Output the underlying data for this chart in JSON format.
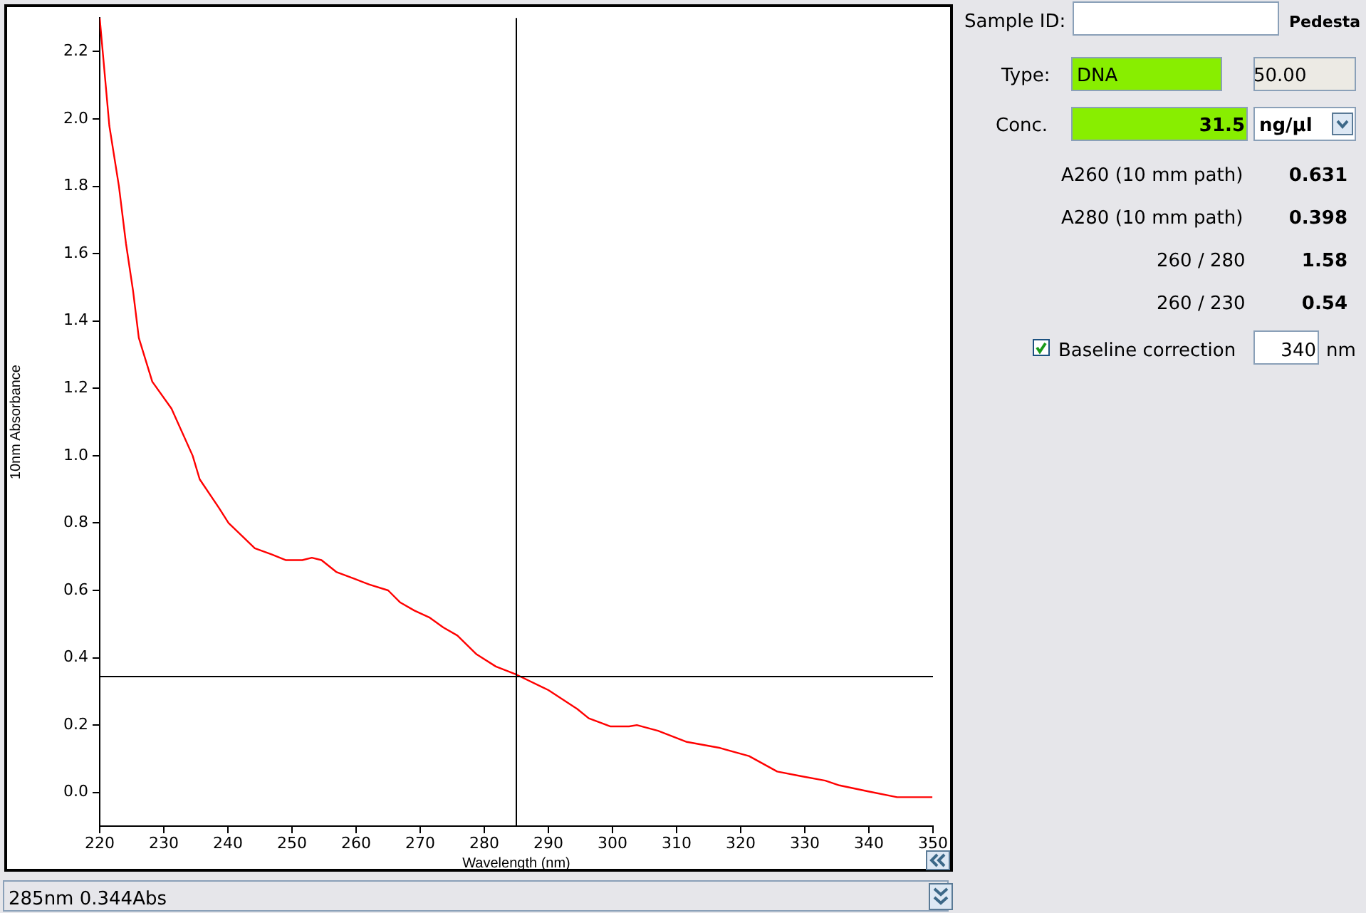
{
  "chart_data": {
    "type": "line",
    "xlabel": "Wavelength (nm)",
    "ylabel": "10nm Absorbance",
    "x": [
      220,
      221.5,
      223,
      224.1,
      225.2,
      226.1,
      228.2,
      231.2,
      234.5,
      235.6,
      238.6,
      240.1,
      242.3,
      244.2,
      246.8,
      249,
      251.6,
      253.1,
      254.6,
      256.9,
      259.8,
      262.1,
      265,
      266.9,
      269.1,
      271.4,
      273.6,
      275.8,
      278.8,
      281.8,
      285,
      290,
      294.5,
      296.3,
      299.7,
      302.6,
      303.8,
      307.1,
      311.6,
      316.8,
      321.3,
      325.7,
      329.5,
      333.2,
      335.4,
      339.9,
      344.4,
      349.9
    ],
    "series": [
      {
        "color": "#ff0000",
        "values": [
          2.3,
          1.98,
          1.8,
          1.63,
          1.49,
          1.35,
          1.22,
          1.14,
          1.0,
          0.93,
          0.845,
          0.8,
          0.76,
          0.725,
          0.707,
          0.69,
          0.69,
          0.697,
          0.69,
          0.655,
          0.634,
          0.617,
          0.6,
          0.564,
          0.54,
          0.52,
          0.49,
          0.466,
          0.41,
          0.374,
          0.35,
          0.304,
          0.248,
          0.22,
          0.196,
          0.196,
          0.2,
          0.183,
          0.15,
          0.132,
          0.108,
          0.062,
          0.048,
          0.035,
          0.021,
          0.003,
          -0.014,
          -0.014
        ]
      }
    ],
    "xlim": [
      220,
      350
    ],
    "xticks": [
      220,
      230,
      240,
      250,
      260,
      270,
      280,
      290,
      300,
      310,
      320,
      330,
      340,
      350
    ],
    "ylim": [
      -0.1,
      2.3
    ],
    "yticks": [
      {
        "value": 0,
        "label": "0.0"
      },
      0.2,
      0.4,
      0.6,
      0.8,
      {
        "value": 1,
        "label": "1.0"
      },
      1.2,
      1.4,
      1.6,
      1.8,
      {
        "value": 2,
        "label": "2.0"
      },
      2.2
    ],
    "ref_lines": [
      {
        "axis": "x",
        "value": 285,
        "color": "#000000"
      },
      {
        "axis": "y",
        "value": 0.344,
        "color": "#000000"
      }
    ],
    "grid": false,
    "legend": false,
    "marker": "none",
    "line_style": "solid",
    "annotations": [
      "Sample ID:",
      "Pedesta",
      "Type:",
      "DNA",
      "50.00",
      "Conc.",
      "31.5",
      "ng/µl",
      "A260 (10 mm path)",
      "0.631",
      "A280 (10 mm path)",
      "0.398",
      "260 / 280",
      "1.58",
      "260 / 230",
      "0.54",
      "Baseline correction",
      "340",
      "nm",
      "285nm 0.344Abs"
    ]
  }
}
